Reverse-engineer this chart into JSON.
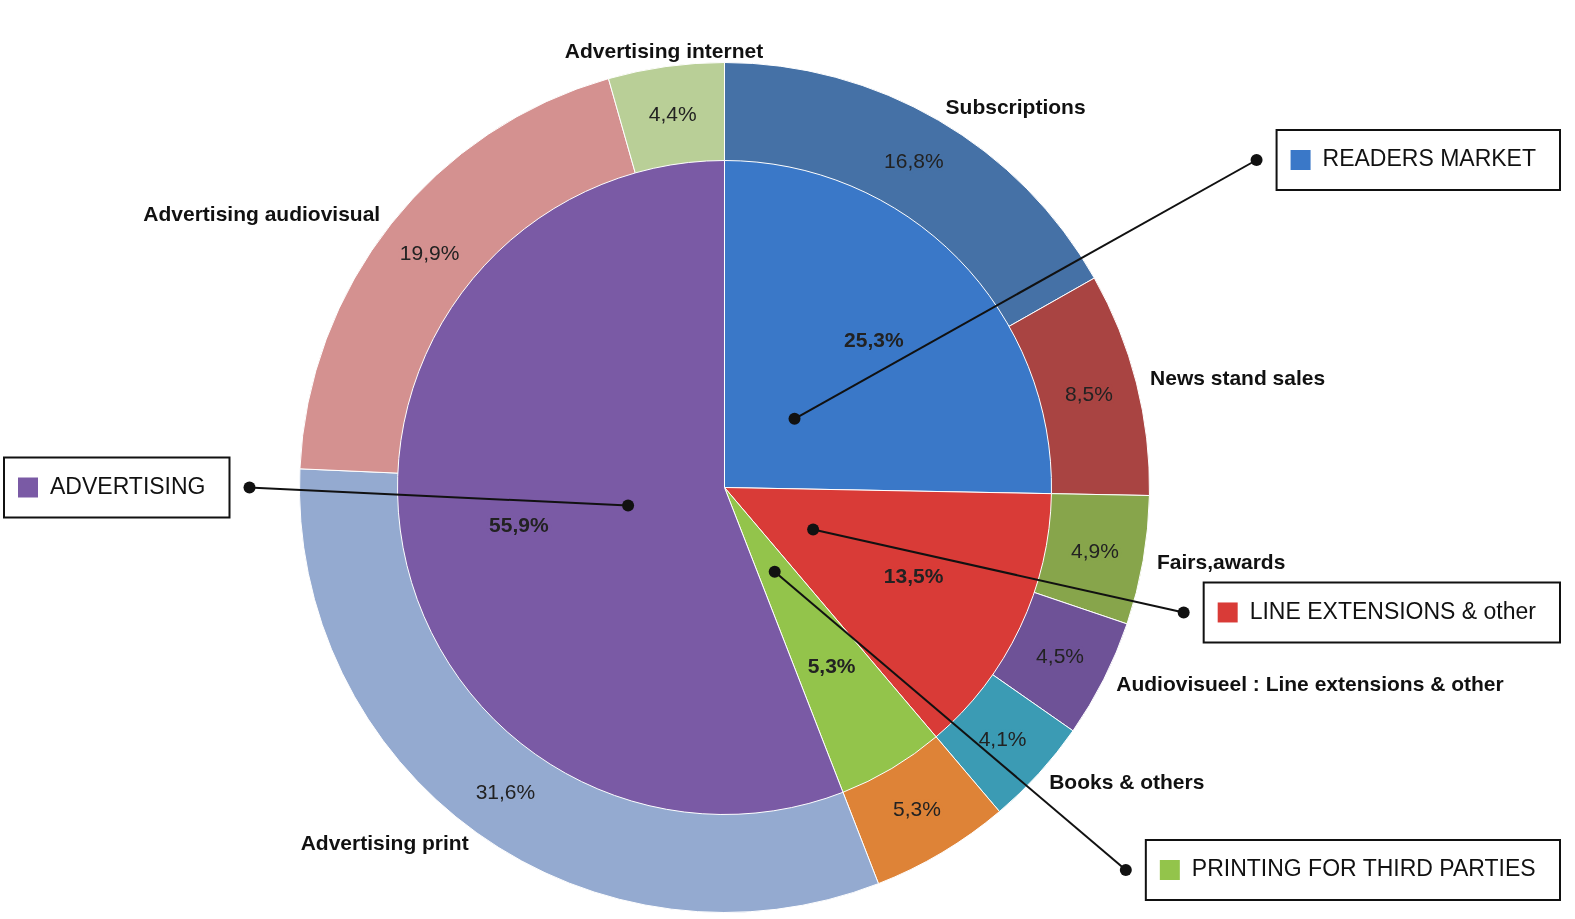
{
  "chart_data": [
    {
      "type": "donut",
      "categories": [
        "Subscriptions",
        "News stand sales",
        "Fairs,awards",
        "Audiovisueel : Line extensions & other",
        "Books & others",
        null,
        "Advertising print",
        "Advertising audiovisual",
        "Advertising internet"
      ],
      "values": [
        16.8,
        8.5,
        4.9,
        4.5,
        4.1,
        5.3,
        31.6,
        19.9,
        4.4
      ],
      "value_labels": [
        "16,8%",
        "8,5%",
        "4,9%",
        "4,5%",
        "4,1%",
        "5,3%",
        "31,6%",
        "19,9%",
        "4,4%"
      ],
      "colors": [
        "#4571a6",
        "#a94442",
        "#87a54b",
        "#6e5297",
        "#3b9bb4",
        "#de8337",
        "#94aad0",
        "#d49190",
        "#b9cf97"
      ]
    },
    {
      "type": "pie",
      "categories": [
        "READERS MARKET",
        "LINE EXTENSIONS & other",
        "PRINTING FOR THIRD PARTIES",
        "ADVERTISING"
      ],
      "values": [
        25.3,
        13.5,
        5.3,
        55.9
      ],
      "value_labels": [
        "25,3%",
        "13,5%",
        "5,3%",
        "55,9%"
      ],
      "colors": [
        "#3a78c8",
        "#d93b37",
        "#93c44b",
        "#7a5aa5"
      ],
      "legend": "right"
    }
  ]
}
